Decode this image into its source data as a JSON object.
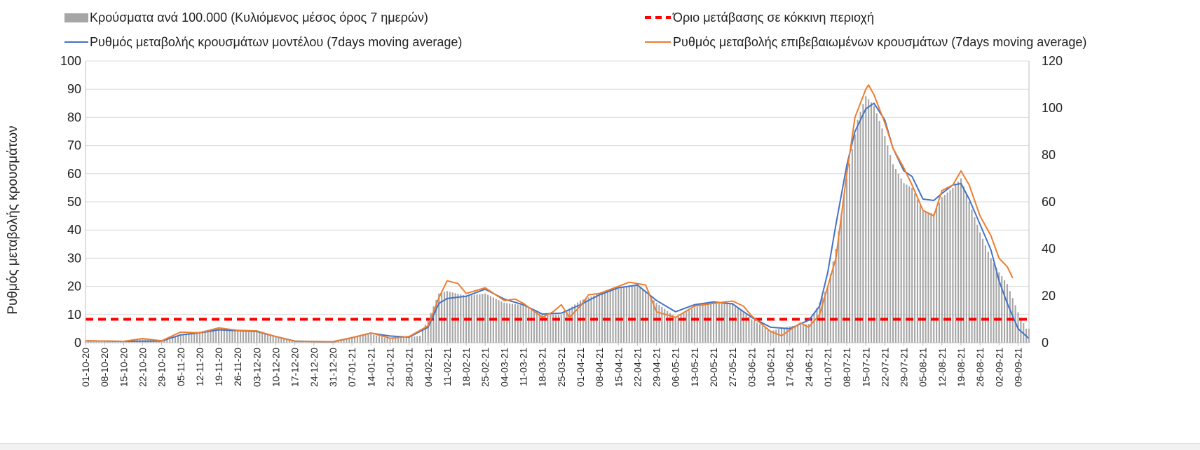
{
  "chart_data": {
    "type": "bar+line",
    "title": "",
    "legend": {
      "placement": "top",
      "entries": [
        {
          "label": "Κρούσματα ανά 100.000 (Κυλιόμενος μέσος όρος 7 ημερών)",
          "symbol": "bar",
          "color": "#a6a6a6"
        },
        {
          "label": "Όριο μετάβασης σε κόκκινη περιοχή",
          "symbol": "dashed-line",
          "color": "#ff0000"
        },
        {
          "label": "Ρυθμός μεταβολής κρουσμάτων μοντέλου (7days moving average)",
          "symbol": "line",
          "color": "#4472c4"
        },
        {
          "label": "Ρυθμός μεταβολής επιβεβαιωμένων κρουσμάτων (7days moving average)",
          "symbol": "line",
          "color": "#ed7d31"
        }
      ]
    },
    "ylabel": "Ρυθμός μεταβολής κρουσμάτων",
    "ylabel_right": "",
    "ylim": [
      0,
      100
    ],
    "yticks": [
      0,
      10,
      20,
      30,
      40,
      50,
      60,
      70,
      80,
      90,
      100
    ],
    "ylim_right": [
      0,
      120
    ],
    "yticks_right": [
      0,
      20,
      40,
      60,
      80,
      100,
      120
    ],
    "grid": true,
    "x_range": [
      "2020-10-01",
      "2021-09-13"
    ],
    "xticks": [
      "01-10-20",
      "08-10-20",
      "15-10-20",
      "22-10-20",
      "29-10-20",
      "05-11-20",
      "12-11-20",
      "19-11-20",
      "26-11-20",
      "03-12-20",
      "10-12-20",
      "17-12-20",
      "24-12-20",
      "31-12-20",
      "07-01-21",
      "14-01-21",
      "21-01-21",
      "28-01-21",
      "04-02-21",
      "11-02-21",
      "18-02-21",
      "25-02-21",
      "04-03-21",
      "11-03-21",
      "18-03-21",
      "25-03-21",
      "01-04-21",
      "08-04-21",
      "15-04-21",
      "22-04-21",
      "29-04-21",
      "06-05-21",
      "13-05-21",
      "20-05-21",
      "27-05-21",
      "03-06-21",
      "10-06-21",
      "17-06-21",
      "24-06-21",
      "01-07-21",
      "08-07-21",
      "15-07-21",
      "22-07-21",
      "29-07-21",
      "05-08-21",
      "12-08-21",
      "19-08-21",
      "26-08-21",
      "02-09-21",
      "09-09-21"
    ],
    "threshold": {
      "name": "Όριο μετάβασης σε κόκκινη περιοχή",
      "axis": "right",
      "value": 10
    },
    "series": [
      {
        "name": "Κρούσματα ανά 100.000 (Κυλιόμενος μέσος όρος 7 ημερών)",
        "kind": "bar",
        "axis": "right",
        "color": "#a6a6a6",
        "points": [
          [
            "2020-10-01",
            0.8
          ],
          [
            "2020-10-08",
            0.6
          ],
          [
            "2020-10-15",
            0.5
          ],
          [
            "2020-10-22",
            1.6
          ],
          [
            "2020-10-29",
            0.8
          ],
          [
            "2020-11-01",
            1.4
          ],
          [
            "2020-11-05",
            3.6
          ],
          [
            "2020-11-12",
            4.8
          ],
          [
            "2020-11-19",
            6.4
          ],
          [
            "2020-11-26",
            5.0
          ],
          [
            "2020-12-03",
            4.8
          ],
          [
            "2020-12-10",
            2.5
          ],
          [
            "2020-12-17",
            0.6
          ],
          [
            "2020-12-24",
            0.4
          ],
          [
            "2020-12-31",
            0.4
          ],
          [
            "2021-01-07",
            2.5
          ],
          [
            "2021-01-14",
            3.6
          ],
          [
            "2021-01-21",
            1.6
          ],
          [
            "2021-01-28",
            2.4
          ],
          [
            "2021-02-01",
            3.0
          ],
          [
            "2021-02-04",
            10.0
          ],
          [
            "2021-02-08",
            21.0
          ],
          [
            "2021-02-11",
            22.0
          ],
          [
            "2021-02-18",
            20.0
          ],
          [
            "2021-02-25",
            21.0
          ],
          [
            "2021-03-04",
            17.0
          ],
          [
            "2021-03-11",
            16.0
          ],
          [
            "2021-03-18",
            12.0
          ],
          [
            "2021-03-25",
            12.0
          ],
          [
            "2021-04-01",
            18.0
          ],
          [
            "2021-04-08",
            21.0
          ],
          [
            "2021-04-15",
            23.0
          ],
          [
            "2021-04-22",
            25.0
          ],
          [
            "2021-04-29",
            17.0
          ],
          [
            "2021-05-06",
            11.0
          ],
          [
            "2021-05-13",
            15.0
          ],
          [
            "2021-05-20",
            17.0
          ],
          [
            "2021-05-27",
            17.0
          ],
          [
            "2021-06-03",
            10.0
          ],
          [
            "2021-06-10",
            5.0
          ],
          [
            "2021-06-17",
            7.0
          ],
          [
            "2021-06-24",
            8.0
          ],
          [
            "2021-07-01",
            24.0
          ],
          [
            "2021-07-04",
            40.0
          ],
          [
            "2021-07-08",
            70.0
          ],
          [
            "2021-07-12",
            95.0
          ],
          [
            "2021-07-15",
            105.0
          ],
          [
            "2021-07-18",
            101.0
          ],
          [
            "2021-07-22",
            88.0
          ],
          [
            "2021-07-25",
            76.0
          ],
          [
            "2021-07-29",
            68.0
          ],
          [
            "2021-08-01",
            66.0
          ],
          [
            "2021-08-05",
            56.0
          ],
          [
            "2021-08-09",
            55.0
          ],
          [
            "2021-08-12",
            62.0
          ],
          [
            "2021-08-16",
            66.0
          ],
          [
            "2021-08-19",
            70.0
          ],
          [
            "2021-08-22",
            60.0
          ],
          [
            "2021-08-26",
            47.0
          ],
          [
            "2021-08-30",
            36.0
          ],
          [
            "2021-09-02",
            30.0
          ],
          [
            "2021-09-05",
            25.0
          ],
          [
            "2021-09-09",
            13.0
          ],
          [
            "2021-09-12",
            6.0
          ]
        ]
      },
      {
        "name": "Ρυθμός μεταβολής κρουσμάτων μοντέλου (7days moving average)",
        "kind": "line",
        "axis": "left",
        "color": "#4472c4",
        "points": [
          [
            "2020-10-01",
            0.7
          ],
          [
            "2020-10-15",
            0.5
          ],
          [
            "2020-10-29",
            0.6
          ],
          [
            "2020-11-05",
            2.8
          ],
          [
            "2020-11-12",
            3.5
          ],
          [
            "2020-11-19",
            4.6
          ],
          [
            "2020-11-26",
            4.3
          ],
          [
            "2020-12-03",
            4.0
          ],
          [
            "2020-12-10",
            2.2
          ],
          [
            "2020-12-17",
            0.6
          ],
          [
            "2020-12-31",
            0.3
          ],
          [
            "2021-01-07",
            1.8
          ],
          [
            "2021-01-14",
            3.4
          ],
          [
            "2021-01-21",
            2.4
          ],
          [
            "2021-01-28",
            2.0
          ],
          [
            "2021-02-04",
            5.5
          ],
          [
            "2021-02-08",
            14.0
          ],
          [
            "2021-02-11",
            15.7
          ],
          [
            "2021-02-18",
            16.5
          ],
          [
            "2021-02-25",
            19.0
          ],
          [
            "2021-03-04",
            15.5
          ],
          [
            "2021-03-11",
            13.5
          ],
          [
            "2021-03-18",
            10.2
          ],
          [
            "2021-03-25",
            10.5
          ],
          [
            "2021-04-01",
            13.5
          ],
          [
            "2021-04-08",
            17.0
          ],
          [
            "2021-04-15",
            19.5
          ],
          [
            "2021-04-22",
            20.5
          ],
          [
            "2021-04-29",
            15.0
          ],
          [
            "2021-05-06",
            11.0
          ],
          [
            "2021-05-13",
            13.5
          ],
          [
            "2021-05-20",
            14.5
          ],
          [
            "2021-05-27",
            13.8
          ],
          [
            "2021-06-03",
            9.0
          ],
          [
            "2021-06-10",
            5.5
          ],
          [
            "2021-06-17",
            5.0
          ],
          [
            "2021-06-24",
            8.0
          ],
          [
            "2021-06-28",
            13.0
          ],
          [
            "2021-07-01",
            25.0
          ],
          [
            "2021-07-04",
            42.0
          ],
          [
            "2021-07-08",
            63.0
          ],
          [
            "2021-07-11",
            75.0
          ],
          [
            "2021-07-15",
            83.0
          ],
          [
            "2021-07-18",
            85.0
          ],
          [
            "2021-07-22",
            79.0
          ],
          [
            "2021-07-25",
            69.0
          ],
          [
            "2021-07-29",
            61.0
          ],
          [
            "2021-08-01",
            59.0
          ],
          [
            "2021-08-05",
            51.0
          ],
          [
            "2021-08-09",
            50.5
          ],
          [
            "2021-08-12",
            53.0
          ],
          [
            "2021-08-16",
            56.0
          ],
          [
            "2021-08-19",
            56.5
          ],
          [
            "2021-08-22",
            51.0
          ],
          [
            "2021-08-26",
            42.0
          ],
          [
            "2021-08-30",
            33.0
          ],
          [
            "2021-09-02",
            22.0
          ],
          [
            "2021-09-05",
            14.0
          ],
          [
            "2021-09-09",
            5.0
          ],
          [
            "2021-09-13",
            1.5
          ]
        ]
      },
      {
        "name": "Ρυθμός μεταβολής επιβεβαιωμένων κρουσμάτων (7days moving average)",
        "kind": "line",
        "axis": "left",
        "color": "#ed7d31",
        "points": [
          [
            "2020-10-01",
            0.7
          ],
          [
            "2020-10-15",
            0.5
          ],
          [
            "2020-10-22",
            1.5
          ],
          [
            "2020-10-29",
            0.7
          ],
          [
            "2020-11-05",
            3.8
          ],
          [
            "2020-11-12",
            3.5
          ],
          [
            "2020-11-19",
            5.3
          ],
          [
            "2020-11-26",
            4.4
          ],
          [
            "2020-12-03",
            4.2
          ],
          [
            "2020-12-10",
            2.2
          ],
          [
            "2020-12-17",
            0.5
          ],
          [
            "2020-12-31",
            0.4
          ],
          [
            "2021-01-07",
            1.8
          ],
          [
            "2021-01-14",
            3.5
          ],
          [
            "2021-01-21",
            1.6
          ],
          [
            "2021-01-28",
            2.2
          ],
          [
            "2021-02-04",
            6.0
          ],
          [
            "2021-02-08",
            16.0
          ],
          [
            "2021-02-11",
            22.0
          ],
          [
            "2021-02-15",
            21.0
          ],
          [
            "2021-02-18",
            17.5
          ],
          [
            "2021-02-25",
            19.5
          ],
          [
            "2021-03-04",
            15.0
          ],
          [
            "2021-03-08",
            15.5
          ],
          [
            "2021-03-11",
            14.0
          ],
          [
            "2021-03-18",
            9.0
          ],
          [
            "2021-03-22",
            11.0
          ],
          [
            "2021-03-25",
            13.5
          ],
          [
            "2021-03-28",
            9.0
          ],
          [
            "2021-04-01",
            13.0
          ],
          [
            "2021-04-04",
            17.0
          ],
          [
            "2021-04-08",
            17.5
          ],
          [
            "2021-04-15",
            20.0
          ],
          [
            "2021-04-19",
            21.5
          ],
          [
            "2021-04-22",
            21.0
          ],
          [
            "2021-04-25",
            20.5
          ],
          [
            "2021-04-29",
            11.0
          ],
          [
            "2021-05-06",
            9.0
          ],
          [
            "2021-05-13",
            13.0
          ],
          [
            "2021-05-20",
            14.0
          ],
          [
            "2021-05-27",
            14.8
          ],
          [
            "2021-05-31",
            13.0
          ],
          [
            "2021-06-03",
            9.5
          ],
          [
            "2021-06-10",
            4.0
          ],
          [
            "2021-06-14",
            2.5
          ],
          [
            "2021-06-17",
            4.5
          ],
          [
            "2021-06-21",
            7.0
          ],
          [
            "2021-06-24",
            5.5
          ],
          [
            "2021-06-28",
            10.0
          ],
          [
            "2021-07-01",
            20.0
          ],
          [
            "2021-07-04",
            30.0
          ],
          [
            "2021-07-08",
            60.0
          ],
          [
            "2021-07-11",
            80.0
          ],
          [
            "2021-07-15",
            90.0
          ],
          [
            "2021-07-16",
            91.5
          ],
          [
            "2021-07-18",
            88.0
          ],
          [
            "2021-07-22",
            78.0
          ],
          [
            "2021-07-25",
            69.0
          ],
          [
            "2021-07-29",
            62.0
          ],
          [
            "2021-08-01",
            56.0
          ],
          [
            "2021-08-05",
            47.0
          ],
          [
            "2021-08-09",
            45.0
          ],
          [
            "2021-08-12",
            54.0
          ],
          [
            "2021-08-16",
            56.0
          ],
          [
            "2021-08-19",
            61.0
          ],
          [
            "2021-08-22",
            56.0
          ],
          [
            "2021-08-26",
            45.0
          ],
          [
            "2021-08-30",
            38.0
          ],
          [
            "2021-09-02",
            30.0
          ],
          [
            "2021-09-05",
            27.0
          ],
          [
            "2021-09-07",
            23.0
          ]
        ]
      }
    ]
  }
}
